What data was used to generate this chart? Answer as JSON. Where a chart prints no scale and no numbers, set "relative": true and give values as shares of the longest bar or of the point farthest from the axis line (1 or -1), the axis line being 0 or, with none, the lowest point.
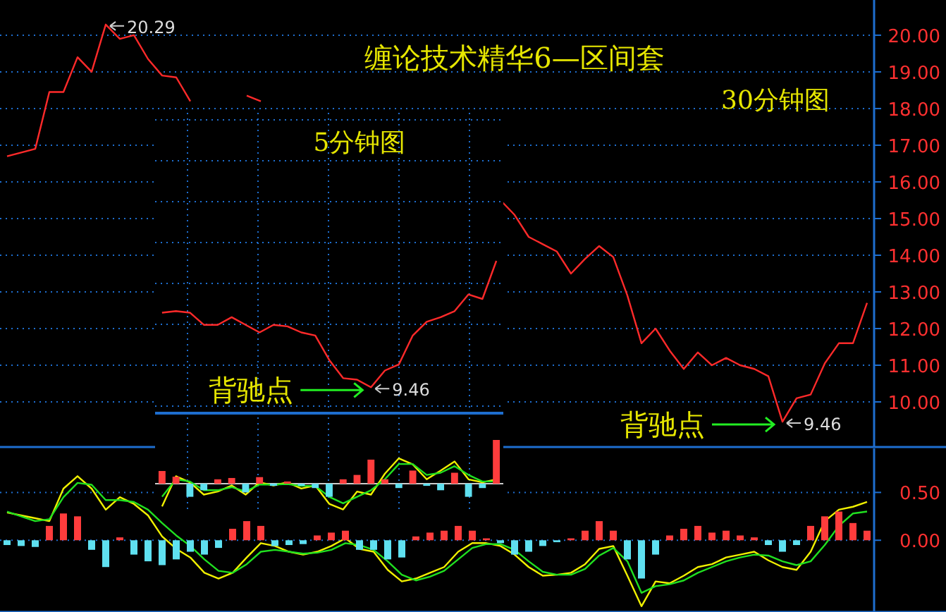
{
  "chart_data": [
    {
      "type": "line",
      "title": "缠论技术精华6—区间套",
      "subtitle": "30分钟图",
      "categories": [
        null,
        null,
        null,
        null,
        null,
        null,
        null,
        null,
        null,
        null,
        null,
        null,
        null,
        null,
        null,
        null,
        null,
        null,
        null,
        null,
        null,
        null,
        null,
        null,
        null,
        null,
        null,
        null,
        null,
        null,
        null,
        null,
        null,
        null,
        null,
        null,
        null,
        null,
        null,
        null,
        null,
        null,
        null,
        null,
        null,
        null,
        null,
        null,
        null,
        null,
        null,
        null,
        null,
        null,
        null,
        null,
        null,
        null,
        null,
        null,
        null,
        null
      ],
      "series": [
        {
          "color": "#ff2a2a",
          "values": [
            16.7,
            16.8,
            16.9,
            18.45,
            18.45,
            19.4,
            19.0,
            20.29,
            19.9,
            20.0,
            19.35,
            18.9,
            18.85,
            18.2,
            null,
            null,
            null,
            18.35,
            18.2,
            null,
            null,
            null,
            null,
            null,
            null,
            null,
            null,
            null,
            null,
            null,
            null,
            null,
            null,
            null,
            null,
            15.5,
            15.1,
            14.5,
            14.3,
            14.1,
            13.5,
            13.9,
            14.25,
            13.95,
            12.9,
            11.6,
            12.0,
            11.4,
            10.9,
            11.35,
            11.0,
            11.2,
            11.0,
            10.9,
            10.7,
            9.46,
            10.1,
            10.2,
            11.05,
            11.6,
            11.6,
            12.7
          ]
        }
      ],
      "ylim": [
        8.77,
        20.96
      ],
      "yticks": [
        {
          "value": 10,
          "label": "10.00"
        },
        {
          "value": 11,
          "label": "11.00"
        },
        {
          "value": 12,
          "label": "12.00"
        },
        {
          "value": 13,
          "label": "13.00"
        },
        {
          "value": 14,
          "label": "14.00"
        },
        {
          "value": 15,
          "label": "15.00"
        },
        {
          "value": 16,
          "label": "16.00"
        },
        {
          "value": 17,
          "label": "17.00"
        },
        {
          "value": 18,
          "label": "18.00"
        },
        {
          "value": 19,
          "label": "19.00"
        },
        {
          "value": 20,
          "label": "20.00"
        }
      ],
      "grid": "y",
      "annotations": [
        "20.29",
        "9.46",
        "背驰点"
      ]
    },
    {
      "type": "line",
      "title": "5分钟图",
      "relative": true,
      "categories": [
        null,
        null,
        null,
        null,
        null,
        null,
        null,
        null,
        null,
        null,
        null,
        null,
        null,
        null,
        null,
        null,
        null,
        null,
        null,
        null,
        null,
        null,
        null,
        null,
        null
      ],
      "series": [
        {
          "color": "#ff2a2a",
          "values": [
            0.66,
            0.67,
            0.66,
            0.58,
            0.58,
            0.63,
            0.58,
            0.53,
            0.58,
            0.57,
            0.53,
            0.51,
            0.35,
            0.23,
            0.22,
            0.17,
            0.28,
            0.32,
            0.51,
            0.6,
            0.63,
            0.67,
            0.78,
            0.75,
            1
          ]
        }
      ],
      "grid": true,
      "annotations": [
        "9.46",
        "背驰点"
      ]
    },
    {
      "type": "bar",
      "categories": [
        null,
        null,
        null,
        null,
        null,
        null,
        null,
        null,
        null,
        null,
        null,
        null,
        null,
        null,
        null,
        null,
        null,
        null,
        null,
        null,
        null,
        null,
        null,
        null,
        null,
        null,
        null,
        null,
        null,
        null,
        null,
        null,
        null,
        null,
        null,
        null,
        null,
        null,
        null,
        null,
        null,
        null,
        null,
        null,
        null,
        null,
        null,
        null,
        null,
        null,
        null,
        null,
        null,
        null,
        null,
        null,
        null,
        null,
        null,
        null,
        null,
        null
      ],
      "series": [
        {
          "values": [
            -0.05,
            -0.06,
            -0.07,
            0.15,
            0.28,
            0.25,
            -0.1,
            -0.28,
            0.03,
            -0.15,
            -0.22,
            -0.26,
            -0.2,
            -0.12,
            -0.15,
            -0.08,
            0.12,
            0.2,
            0.15,
            -0.06,
            -0.05,
            -0.04,
            0.05,
            0.08,
            0.1,
            -0.1,
            -0.1,
            -0.2,
            -0.18,
            0.04,
            0.08,
            0.1,
            0.15,
            0.1,
            0.02,
            -0.03,
            -0.15,
            -0.12,
            -0.06,
            -0.02,
            0.02,
            0.1,
            0.2,
            0.1,
            -0.2,
            -0.4,
            -0.15,
            0.05,
            0.12,
            0.15,
            0.08,
            0.1,
            0.05,
            0.03,
            -0.05,
            -0.12,
            -0.05,
            0.15,
            0.25,
            0.3,
            0.18,
            0.1
          ],
          "colors": [
            "#5fe0f0",
            "#5fe0f0",
            "#5fe0f0",
            "#ff3c3c",
            "#ff3c3c",
            "#ff3c3c",
            "#5fe0f0",
            "#5fe0f0",
            "#ff3c3c",
            "#5fe0f0",
            "#5fe0f0",
            "#5fe0f0",
            "#5fe0f0",
            "#5fe0f0",
            "#5fe0f0",
            "#5fe0f0",
            "#ff3c3c",
            "#ff3c3c",
            "#ff3c3c",
            "#5fe0f0",
            "#5fe0f0",
            "#5fe0f0",
            "#ff3c3c",
            "#ff3c3c",
            "#ff3c3c",
            "#5fe0f0",
            "#5fe0f0",
            "#5fe0f0",
            "#5fe0f0",
            "#ff3c3c",
            "#ff3c3c",
            "#ff3c3c",
            "#ff3c3c",
            "#ff3c3c",
            "#ff3c3c",
            "#5fe0f0",
            "#5fe0f0",
            "#5fe0f0",
            "#5fe0f0",
            "#5fe0f0",
            "#ff3c3c",
            "#ff3c3c",
            "#ff3c3c",
            "#ff3c3c",
            "#5fe0f0",
            "#5fe0f0",
            "#5fe0f0",
            "#ff3c3c",
            "#ff3c3c",
            "#ff3c3c",
            "#ff3c3c",
            "#ff3c3c",
            "#ff3c3c",
            "#ff3c3c",
            "#5fe0f0",
            "#5fe0f0",
            "#5fe0f0",
            "#ff3c3c",
            "#ff3c3c",
            "#ff3c3c",
            "#ff3c3c",
            "#ff3c3c"
          ]
        },
        {
          "type": "line",
          "color": "#f0f000",
          "values": [
            0.29,
            0.26,
            0.23,
            0.2,
            0.54,
            0.67,
            0.54,
            0.32,
            0.45,
            0.38,
            0.26,
            0.04,
            -0.09,
            -0.18,
            -0.34,
            -0.4,
            -0.34,
            -0.18,
            -0.03,
            -0.06,
            -0.12,
            -0.15,
            -0.12,
            -0.06,
            0.02,
            -0.09,
            -0.12,
            -0.31,
            -0.43,
            -0.4,
            -0.34,
            -0.28,
            -0.12,
            -0.03,
            -0.03,
            -0.06,
            -0.15,
            -0.28,
            -0.37,
            -0.36,
            -0.34,
            -0.25,
            -0.09,
            -0.06,
            -0.37,
            -0.69,
            -0.43,
            -0.45,
            -0.37,
            -0.28,
            -0.25,
            -0.18,
            -0.15,
            -0.12,
            -0.21,
            -0.28,
            -0.31,
            -0.12,
            0.2,
            0.32,
            0.35,
            0.4
          ]
        },
        {
          "type": "line",
          "color": "#20e020",
          "values": [
            0.3,
            0.25,
            0.2,
            0.22,
            0.45,
            0.6,
            0.58,
            0.42,
            0.42,
            0.4,
            0.32,
            0.18,
            0.05,
            -0.06,
            -0.2,
            -0.32,
            -0.34,
            -0.25,
            -0.12,
            -0.1,
            -0.12,
            -0.14,
            -0.13,
            -0.1,
            -0.03,
            -0.05,
            -0.1,
            -0.22,
            -0.36,
            -0.42,
            -0.38,
            -0.32,
            -0.2,
            -0.08,
            -0.04,
            -0.04,
            -0.1,
            -0.22,
            -0.33,
            -0.36,
            -0.36,
            -0.3,
            -0.16,
            -0.08,
            -0.22,
            -0.55,
            -0.48,
            -0.46,
            -0.42,
            -0.34,
            -0.28,
            -0.22,
            -0.18,
            -0.15,
            -0.16,
            -0.22,
            -0.26,
            -0.22,
            -0.05,
            0.15,
            0.28,
            0.3
          ]
        }
      ],
      "ylim": [
        -0.75,
        0.96
      ],
      "yticks": [
        {
          "value": 0,
          "label": "0.00"
        },
        {
          "value": 0.5,
          "label": "0.50"
        }
      ],
      "grid": "y"
    },
    {
      "type": "bar",
      "relative": true,
      "categories": [
        null,
        null,
        null,
        null,
        null,
        null,
        null,
        null,
        null,
        null,
        null,
        null,
        null,
        null,
        null,
        null,
        null,
        null,
        null,
        null,
        null,
        null,
        null,
        null,
        null
      ],
      "series": [
        {
          "values": [
            0.29,
            0.16,
            -0.3,
            -0.15,
            0.1,
            0.13,
            -0.2,
            0.15,
            -0.05,
            0.05,
            -0.05,
            -0.1,
            -0.3,
            0.1,
            0.2,
            0.55,
            0.1,
            -0.1,
            0.3,
            -0.05,
            -0.15,
            0.25,
            -0.3,
            -0.1,
            1
          ],
          "colors": [
            "#ff3c3c",
            "#ff3c3c",
            "#5fe0f0",
            "#5fe0f0",
            "#ff3c3c",
            "#ff3c3c",
            "#5fe0f0",
            "#ff3c3c",
            "#5fe0f0",
            "#ff3c3c",
            "#5fe0f0",
            "#5fe0f0",
            "#5fe0f0",
            "#ff3c3c",
            "#ff3c3c",
            "#ff3c3c",
            "#ff3c3c",
            "#5fe0f0",
            "#ff3c3c",
            "#5fe0f0",
            "#5fe0f0",
            "#ff3c3c",
            "#5fe0f0",
            "#5fe0f0",
            "#ff3c3c"
          ]
        },
        {
          "type": "line",
          "color": "#f0f000",
          "values": [
            -0.52,
            0.17,
            0.03,
            -0.25,
            -0.18,
            -0.04,
            -0.25,
            0.03,
            -0.04,
            0.03,
            -0.11,
            -0.04,
            -0.46,
            -0.59,
            -0.18,
            -0.25,
            0.23,
            0.58,
            0.44,
            0.1,
            0.3,
            0.51,
            0.1,
            0.03,
            0.1
          ]
        },
        {
          "type": "line",
          "color": "#20e020",
          "values": [
            -0.3,
            0.1,
            0.05,
            -0.15,
            -0.15,
            -0.08,
            -0.18,
            -0.02,
            -0.02,
            -0.01,
            -0.05,
            -0.05,
            -0.3,
            -0.45,
            -0.3,
            -0.15,
            0.1,
            0.45,
            0.45,
            0.2,
            0.25,
            0.4,
            0.2,
            0.05,
            0.05
          ]
        }
      ]
    }
  ]
}
